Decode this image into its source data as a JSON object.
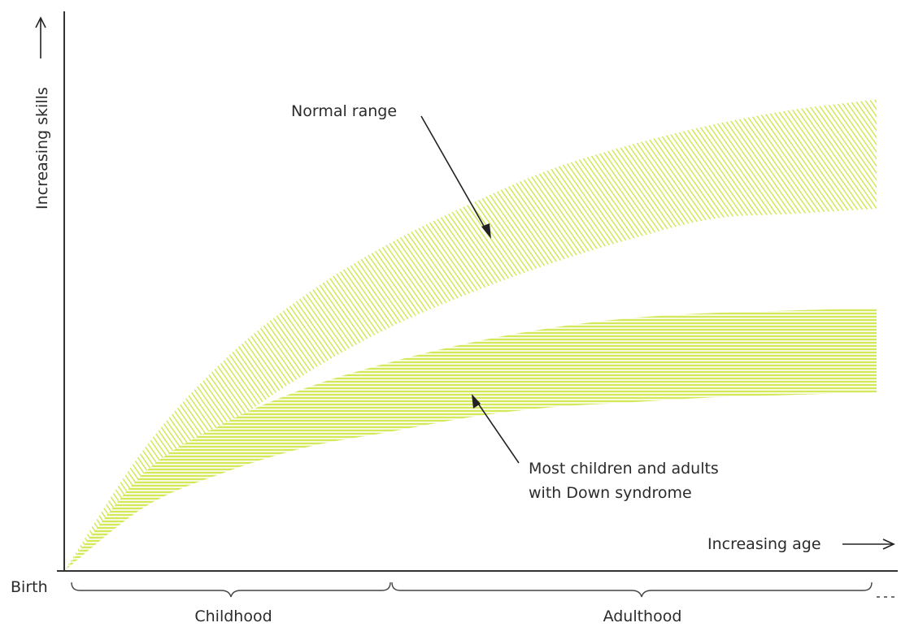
{
  "chart_data": {
    "type": "area",
    "title": "",
    "xlabel": "Increasing age",
    "ylabel": "Increasing skills",
    "origin_label": "Birth",
    "x_segments": [
      "Childhood",
      "Adulthood"
    ],
    "grid": false,
    "legend": "none",
    "bands": [
      {
        "name": "Normal range",
        "color": "#d4e85a",
        "x": [
          0,
          0.1,
          0.2,
          0.3,
          0.4,
          0.5,
          0.6,
          0.7,
          0.8,
          0.9,
          1.0
        ],
        "lower": [
          0,
          0.16,
          0.29,
          0.4,
          0.49,
          0.56,
          0.62,
          0.67,
          0.71,
          0.72,
          0.73
        ],
        "upper": [
          0,
          0.25,
          0.43,
          0.56,
          0.66,
          0.74,
          0.81,
          0.86,
          0.9,
          0.93,
          0.95
        ]
      },
      {
        "name": "Most children and adults with Down syndrome",
        "color": "#d4e85a",
        "x": [
          0,
          0.1,
          0.2,
          0.3,
          0.4,
          0.5,
          0.6,
          0.7,
          0.8,
          0.9,
          1.0
        ],
        "lower": [
          0,
          0.13,
          0.2,
          0.25,
          0.28,
          0.31,
          0.33,
          0.34,
          0.35,
          0.355,
          0.36
        ],
        "upper": [
          0,
          0.2,
          0.3,
          0.37,
          0.42,
          0.46,
          0.49,
          0.51,
          0.52,
          0.525,
          0.53
        ]
      }
    ],
    "annotations": [
      {
        "text": "Normal range",
        "target": "Normal range"
      },
      {
        "text_lines": [
          "Most children and adults",
          "with Down syndrome"
        ],
        "target": "Most children and adults with Down syndrome"
      }
    ]
  }
}
